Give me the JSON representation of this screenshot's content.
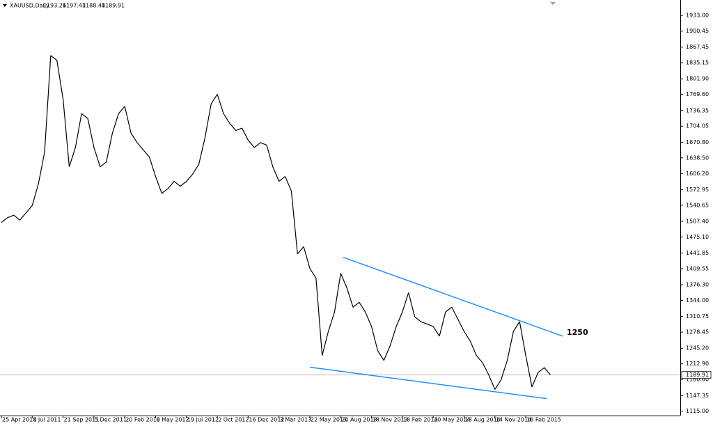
{
  "chart_data": {
    "type": "line",
    "header": {
      "symbol": "XAUUSD,Daily",
      "ohlc": [
        "1193.26",
        "1197.43",
        "1188.40",
        "1189.91"
      ]
    },
    "color": "#000000",
    "categories": [
      "25 Apr 2011",
      null,
      null,
      null,
      null,
      "8 Jul 2011",
      null,
      null,
      null,
      null,
      "21 Sep 2011",
      null,
      null,
      null,
      null,
      "5 Dec 2011",
      null,
      null,
      null,
      null,
      "20 Feb 2012",
      null,
      null,
      null,
      null,
      "6 May 2012",
      null,
      null,
      null,
      null,
      "19 Jul 2012",
      null,
      null,
      null,
      null,
      "2 Oct 2012",
      null,
      null,
      null,
      null,
      "16 Dec 2012",
      null,
      null,
      null,
      null,
      "3 Mar 2013",
      null,
      null,
      null,
      null,
      "22 May 2013",
      null,
      null,
      null,
      null,
      "20 Aug 2013",
      null,
      null,
      null,
      null,
      "18 Nov 2013",
      null,
      null,
      null,
      null,
      "18 Feb 2014",
      null,
      null,
      null,
      null,
      "20 May 2014",
      null,
      null,
      null,
      null,
      "18 Aug 2014",
      null,
      null,
      null,
      null,
      "14 Nov 2014",
      null,
      null,
      null,
      null,
      "16 Feb 2015",
      null,
      null,
      null,
      null
    ],
    "values": [
      1505,
      1515,
      1520,
      1510,
      1525,
      1540,
      1585,
      1650,
      1850,
      1840,
      1760,
      1620,
      1660,
      1730,
      1720,
      1660,
      1620,
      1630,
      1690,
      1730,
      1745,
      1690,
      1670,
      1655,
      1640,
      1600,
      1565,
      1575,
      1590,
      1580,
      1590,
      1605,
      1625,
      1680,
      1750,
      1770,
      1730,
      1710,
      1695,
      1700,
      1675,
      1660,
      1670,
      1665,
      1620,
      1590,
      1600,
      1570,
      1440,
      1455,
      1410,
      1390,
      1230,
      1280,
      1320,
      1400,
      1370,
      1330,
      1340,
      1320,
      1290,
      1240,
      1220,
      1250,
      1290,
      1320,
      1360,
      1310,
      1300,
      1295,
      1290,
      1270,
      1320,
      1330,
      1305,
      1280,
      1260,
      1230,
      1215,
      1190,
      1160,
      1180,
      1220,
      1280,
      1300,
      1230,
      1165,
      1195,
      1205,
      1189.91
    ],
    "ylim": [
      1106,
      1959
    ],
    "yticks": [
      {
        "value": 1933,
        "label": "1933.00"
      },
      1900.45,
      1867.45,
      1835.15,
      {
        "value": 1801.9,
        "label": "1801.90"
      },
      {
        "value": 1769.6,
        "label": "1769.60"
      },
      1736.35,
      1704.05,
      {
        "value": 1670.8,
        "label": "1670.80"
      },
      {
        "value": 1638.5,
        "label": "1638.50"
      },
      {
        "value": 1606.2,
        "label": "1606.20"
      },
      1572.95,
      1540.65,
      {
        "value": 1507.4,
        "label": "1507.40"
      },
      {
        "value": 1475.1,
        "label": "1475.10"
      },
      1441.85,
      1409.55,
      {
        "value": 1376.3,
        "label": "1376.30"
      },
      {
        "value": 1344,
        "label": "1344.00"
      },
      1310.75,
      1278.45,
      {
        "value": 1245.2,
        "label": "1245.20"
      },
      {
        "value": 1212.9,
        "label": "1212.90"
      },
      {
        "value": 1180.6,
        "label": "1180.60"
      },
      1147.35,
      {
        "value": 1115,
        "label": "1115.00"
      }
    ],
    "current_price": 1189.91,
    "trendlines": [
      {
        "x": [
          55.4,
          91
        ],
        "values": [
          1433,
          1270
        ],
        "color": "#1e90ff"
      },
      {
        "x": [
          50,
          88.4
        ],
        "values": [
          1206,
          1141
        ],
        "color": "#1e90ff"
      }
    ],
    "annotations": [
      "1250"
    ]
  }
}
